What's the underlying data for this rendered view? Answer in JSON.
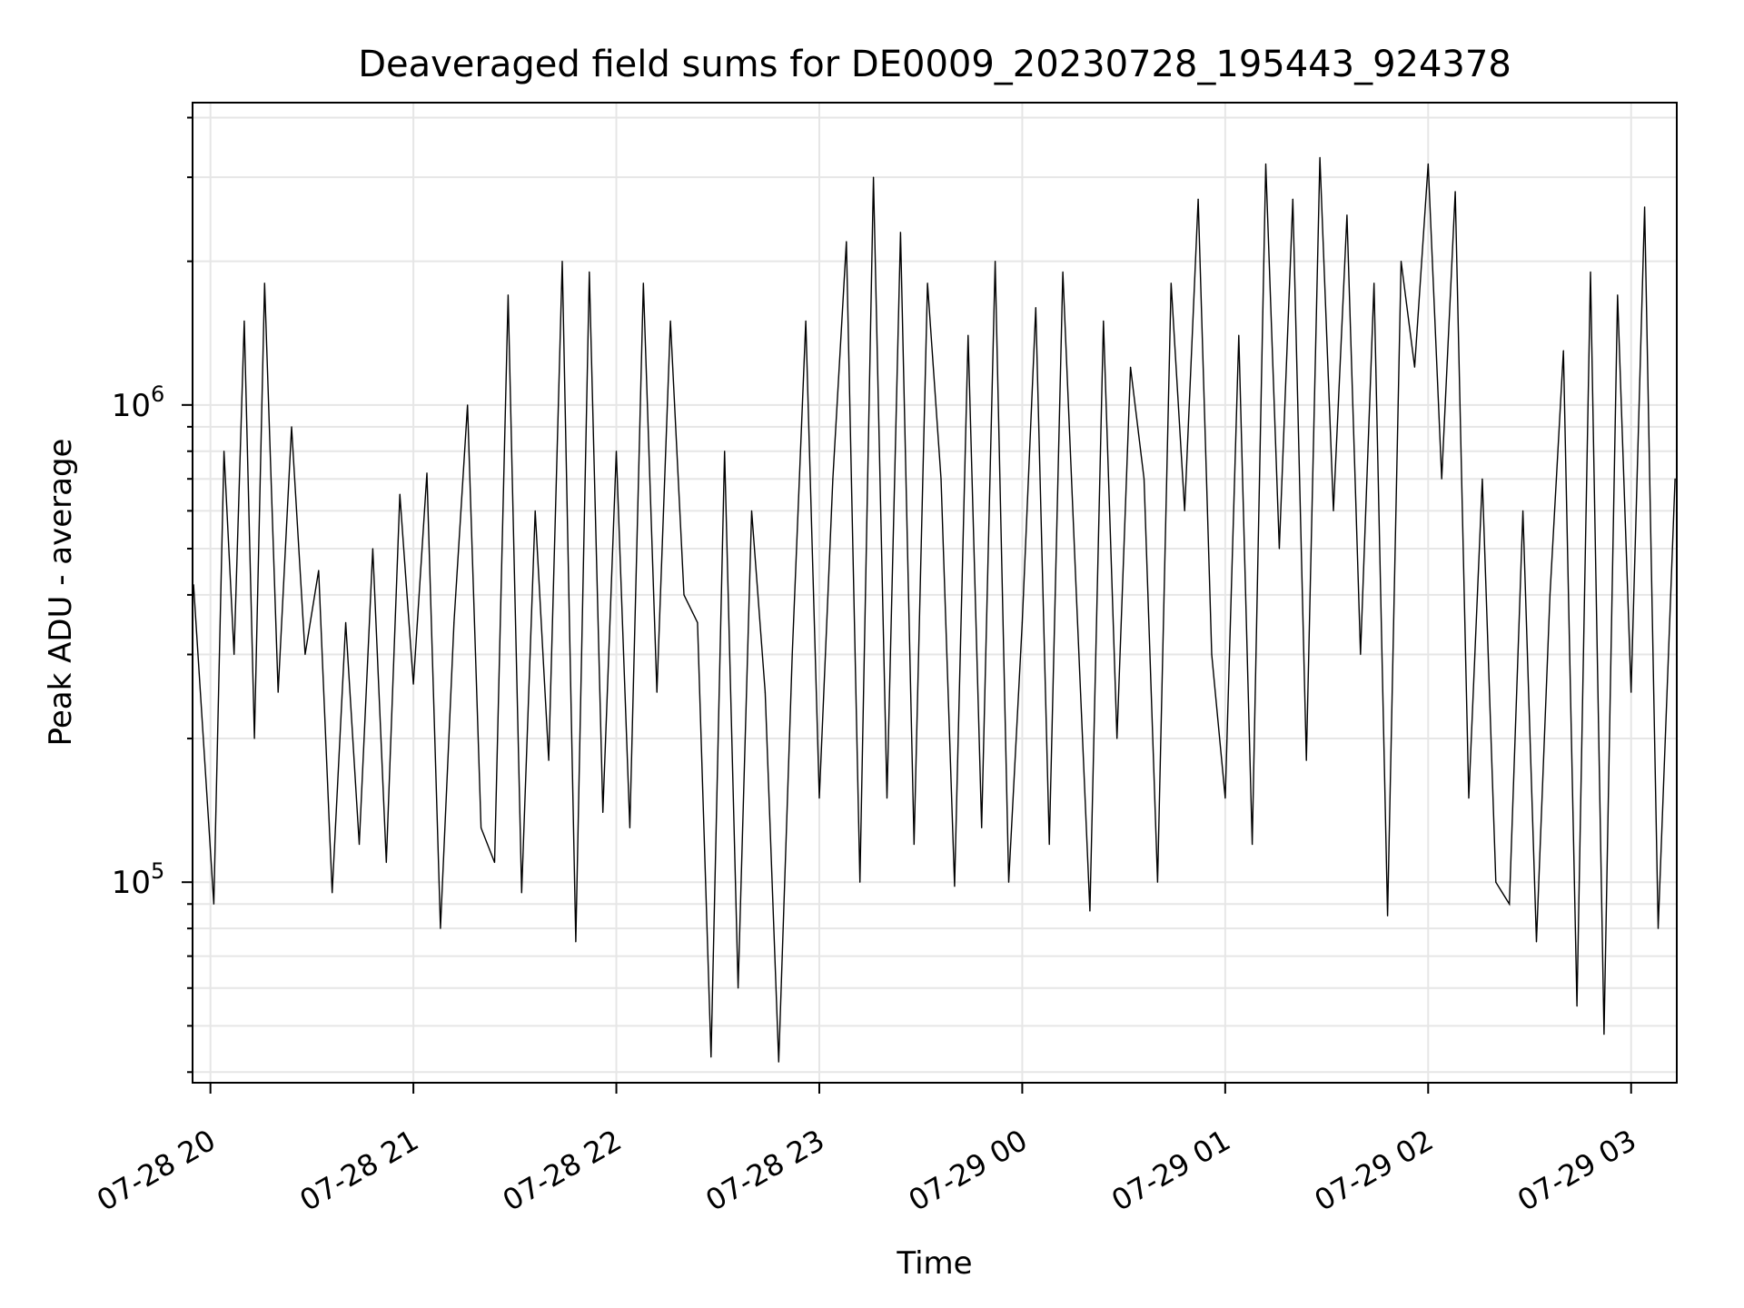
{
  "chart_data": {
    "type": "line",
    "title": "Deaveraged field sums for DE0009_20230728_195443_924378",
    "xlabel": "Time",
    "ylabel": "Peak ADU - average",
    "yscale": "log",
    "grid": true,
    "ylim": [
      38000,
      4300000
    ],
    "xlim": [
      "2023-07-28 19:54:43",
      "2023-07-29 03:13:30"
    ],
    "x_ticks": [
      {
        "t": "2023-07-28 20:00",
        "label": "07-28 20"
      },
      {
        "t": "2023-07-28 21:00",
        "label": "07-28 21"
      },
      {
        "t": "2023-07-28 22:00",
        "label": "07-28 22"
      },
      {
        "t": "2023-07-28 23:00",
        "label": "07-28 23"
      },
      {
        "t": "2023-07-29 00:00",
        "label": "07-29 00"
      },
      {
        "t": "2023-07-29 01:00",
        "label": "07-29 01"
      },
      {
        "t": "2023-07-29 02:00",
        "label": "07-29 02"
      },
      {
        "t": "2023-07-29 03:00",
        "label": "07-29 03"
      }
    ],
    "y_ticks": [
      {
        "value": 100000,
        "base": "10",
        "exp": "5"
      },
      {
        "value": 1000000,
        "base": "10",
        "exp": "6"
      }
    ],
    "series": [
      {
        "color": "#000000",
        "x": [
          "2023-07-28 19:55",
          "2023-07-28 20:01",
          "2023-07-28 20:04",
          "2023-07-28 20:07",
          "2023-07-28 20:10",
          "2023-07-28 20:13",
          "2023-07-28 20:16",
          "2023-07-28 20:20",
          "2023-07-28 20:24",
          "2023-07-28 20:28",
          "2023-07-28 20:32",
          "2023-07-28 20:36",
          "2023-07-28 20:40",
          "2023-07-28 20:44",
          "2023-07-28 20:48",
          "2023-07-28 20:52",
          "2023-07-28 20:56",
          "2023-07-28 21:00",
          "2023-07-28 21:04",
          "2023-07-28 21:08",
          "2023-07-28 21:12",
          "2023-07-28 21:16",
          "2023-07-28 21:20",
          "2023-07-28 21:24",
          "2023-07-28 21:28",
          "2023-07-28 21:32",
          "2023-07-28 21:36",
          "2023-07-28 21:40",
          "2023-07-28 21:44",
          "2023-07-28 21:48",
          "2023-07-28 21:52",
          "2023-07-28 21:56",
          "2023-07-28 22:00",
          "2023-07-28 22:04",
          "2023-07-28 22:08",
          "2023-07-28 22:12",
          "2023-07-28 22:16",
          "2023-07-28 22:20",
          "2023-07-28 22:24",
          "2023-07-28 22:28",
          "2023-07-28 22:32",
          "2023-07-28 22:36",
          "2023-07-28 22:40",
          "2023-07-28 22:44",
          "2023-07-28 22:48",
          "2023-07-28 22:52",
          "2023-07-28 22:56",
          "2023-07-28 23:00",
          "2023-07-28 23:04",
          "2023-07-28 23:08",
          "2023-07-28 23:12",
          "2023-07-28 23:16",
          "2023-07-28 23:20",
          "2023-07-28 23:24",
          "2023-07-28 23:28",
          "2023-07-28 23:32",
          "2023-07-28 23:36",
          "2023-07-28 23:40",
          "2023-07-28 23:44",
          "2023-07-28 23:48",
          "2023-07-28 23:52",
          "2023-07-28 23:56",
          "2023-07-29 00:00",
          "2023-07-29 00:04",
          "2023-07-29 00:08",
          "2023-07-29 00:12",
          "2023-07-29 00:16",
          "2023-07-29 00:20",
          "2023-07-29 00:24",
          "2023-07-29 00:28",
          "2023-07-29 00:32",
          "2023-07-29 00:36",
          "2023-07-29 00:40",
          "2023-07-29 00:44",
          "2023-07-29 00:48",
          "2023-07-29 00:52",
          "2023-07-29 00:56",
          "2023-07-29 01:00",
          "2023-07-29 01:04",
          "2023-07-29 01:08",
          "2023-07-29 01:12",
          "2023-07-29 01:16",
          "2023-07-29 01:20",
          "2023-07-29 01:24",
          "2023-07-29 01:28",
          "2023-07-29 01:32",
          "2023-07-29 01:36",
          "2023-07-29 01:40",
          "2023-07-29 01:44",
          "2023-07-29 01:48",
          "2023-07-29 01:52",
          "2023-07-29 01:56",
          "2023-07-29 02:00",
          "2023-07-29 02:04",
          "2023-07-29 02:08",
          "2023-07-29 02:12",
          "2023-07-29 02:16",
          "2023-07-29 02:20",
          "2023-07-29 02:24",
          "2023-07-29 02:28",
          "2023-07-29 02:32",
          "2023-07-29 02:36",
          "2023-07-29 02:40",
          "2023-07-29 02:44",
          "2023-07-29 02:48",
          "2023-07-29 02:52",
          "2023-07-29 02:56",
          "2023-07-29 03:00",
          "2023-07-29 03:04",
          "2023-07-29 03:08",
          "2023-07-29 03:13"
        ],
        "y": [
          420000,
          90000,
          800000,
          300000,
          1500000,
          200000,
          1800000,
          250000,
          900000,
          300000,
          450000,
          95000,
          350000,
          120000,
          500000,
          110000,
          650000,
          260000,
          720000,
          80000,
          350000,
          1000000,
          130000,
          110000,
          1700000,
          95000,
          600000,
          180000,
          2000000,
          75000,
          1900000,
          140000,
          800000,
          130000,
          1800000,
          250000,
          1500000,
          400000,
          350000,
          43000,
          800000,
          60000,
          600000,
          250000,
          42000,
          300000,
          1500000,
          150000,
          700000,
          2200000,
          100000,
          3000000,
          150000,
          2300000,
          120000,
          1800000,
          700000,
          98000,
          1400000,
          130000,
          2000000,
          100000,
          350000,
          1600000,
          120000,
          1900000,
          400000,
          87000,
          1500000,
          200000,
          1200000,
          700000,
          100000,
          1800000,
          600000,
          2700000,
          300000,
          150000,
          1400000,
          120000,
          3200000,
          500000,
          2700000,
          180000,
          3300000,
          600000,
          2500000,
          300000,
          1800000,
          85000,
          2000000,
          1200000,
          3200000,
          700000,
          2800000,
          150000,
          700000,
          100000,
          90000,
          600000,
          75000,
          400000,
          1300000,
          55000,
          1900000,
          48000,
          1700000,
          250000,
          2600000,
          80000,
          700000
        ]
      }
    ]
  }
}
